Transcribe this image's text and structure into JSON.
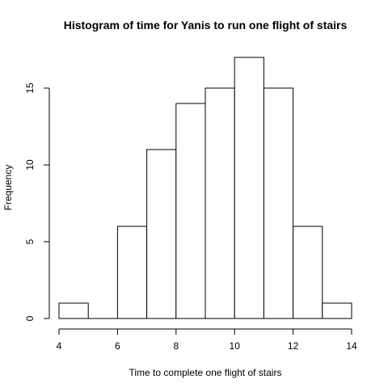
{
  "chart_data": {
    "type": "bar",
    "title": "Histogram of time for Yanis to run one flight of stairs",
    "xlabel": "Time to complete one flight of stairs",
    "ylabel": "Frequency",
    "bins": [
      {
        "start": 4,
        "end": 5,
        "count": 1
      },
      {
        "start": 5,
        "end": 6,
        "count": 0
      },
      {
        "start": 6,
        "end": 7,
        "count": 6
      },
      {
        "start": 7,
        "end": 8,
        "count": 11
      },
      {
        "start": 8,
        "end": 9,
        "count": 14
      },
      {
        "start": 9,
        "end": 10,
        "count": 15
      },
      {
        "start": 10,
        "end": 11,
        "count": 17
      },
      {
        "start": 11,
        "end": 12,
        "count": 15
      },
      {
        "start": 12,
        "end": 13,
        "count": 6
      },
      {
        "start": 13,
        "end": 14,
        "count": 1
      }
    ],
    "xlim": [
      4,
      14
    ],
    "ylim": [
      0,
      17
    ],
    "xticks": [
      4,
      6,
      8,
      10,
      12,
      14
    ],
    "yticks": [
      0,
      5,
      10,
      15
    ],
    "grid": false
  }
}
